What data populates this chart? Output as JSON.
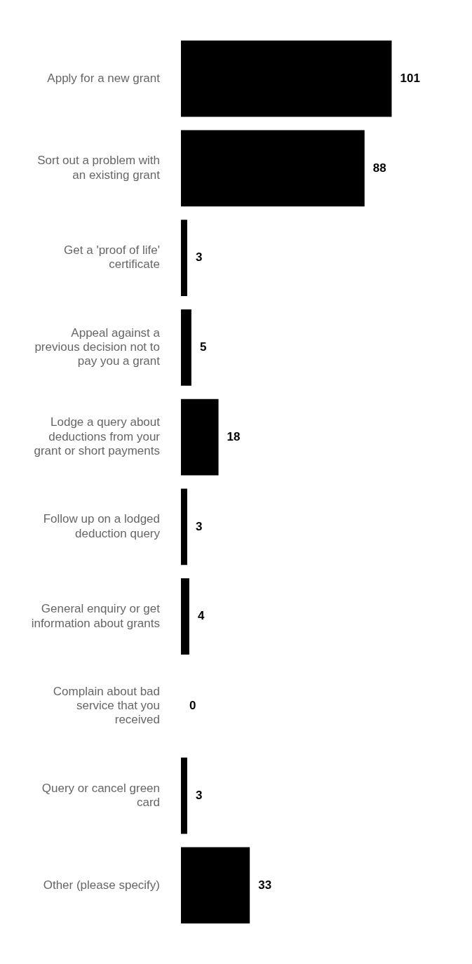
{
  "chart_data": {
    "type": "bar",
    "orientation": "horizontal",
    "categories": [
      "Apply for a new grant",
      "Sort out a problem with an existing grant",
      "Get a 'proof of life' certificate",
      "Appeal against a previous decision not to pay you a grant",
      "Lodge a query about deductions from your grant or short payments",
      "Follow up on a lodged deduction query",
      "General enquiry or get information about grants",
      "Complain about bad service that you received",
      "Query or cancel green card",
      "Other (please specify)"
    ],
    "values": [
      101,
      88,
      3,
      5,
      18,
      3,
      4,
      0,
      3,
      33
    ],
    "color": "#000000",
    "data_labels": true,
    "legend": false,
    "tick_labels": "y"
  }
}
